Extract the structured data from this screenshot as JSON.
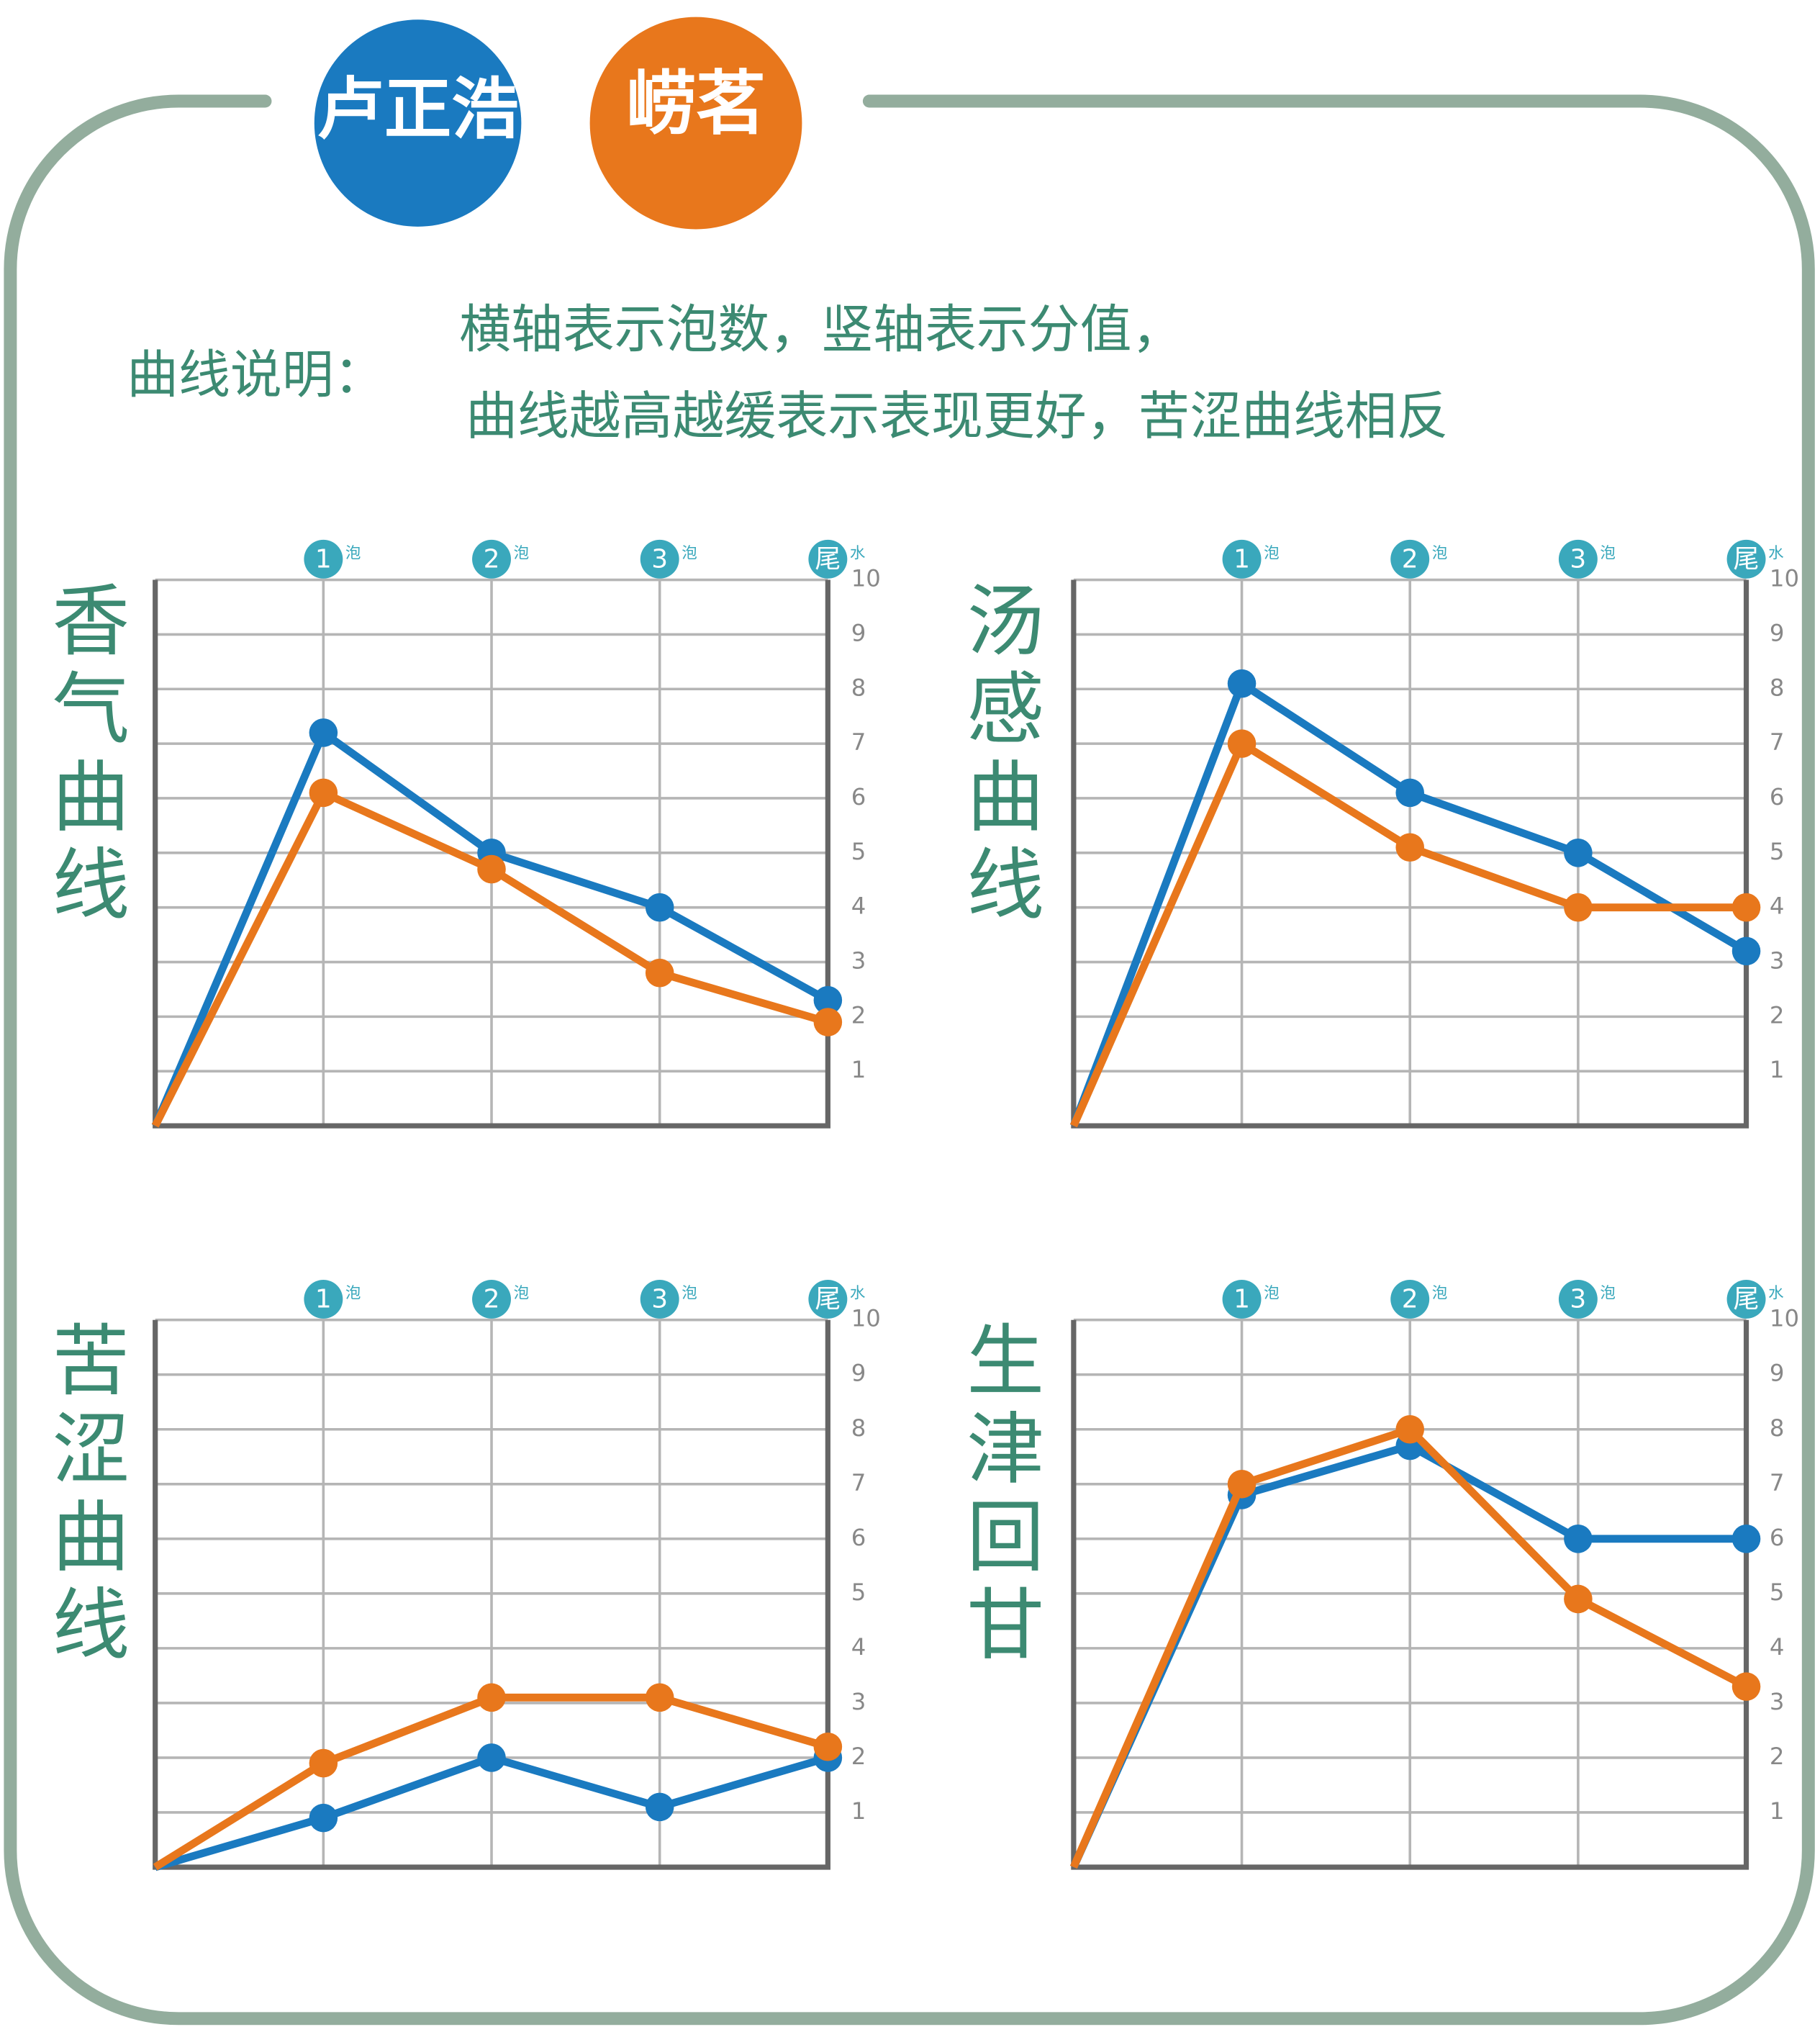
{
  "legend": [
    {
      "name": "卢正浩",
      "color": "#1a7ac0"
    },
    {
      "name": "崂茗",
      "color": "#e8771c"
    }
  ],
  "description": {
    "label": "曲线说明：",
    "lines": [
      "横轴表示泡数，竖轴表示分值，",
      "曲线越高越缓表示表现更好，苦涩曲线相反"
    ]
  },
  "chart_data": [
    {
      "type": "line",
      "title": "香气曲线",
      "categories": [
        null,
        {
          "badge": "1",
          "unit": "泡"
        },
        {
          "badge": "2",
          "unit": "泡"
        },
        {
          "badge": "3",
          "unit": "泡"
        },
        {
          "badge": "尾",
          "unit": "水"
        }
      ],
      "series": [
        {
          "values": [
            0,
            7.2,
            5.0,
            4.0,
            2.3
          ]
        },
        {
          "values": [
            0,
            6.1,
            4.7,
            2.8,
            1.9
          ]
        }
      ],
      "ylim": [
        0,
        10
      ],
      "yticks": [
        1,
        2,
        3,
        4,
        5,
        6,
        7,
        8,
        9,
        10
      ],
      "grid": true
    },
    {
      "type": "line",
      "title": "汤感曲线",
      "categories": [
        null,
        {
          "badge": "1",
          "unit": "泡"
        },
        {
          "badge": "2",
          "unit": "泡"
        },
        {
          "badge": "3",
          "unit": "泡"
        },
        {
          "badge": "尾",
          "unit": "水"
        }
      ],
      "series": [
        {
          "values": [
            0,
            8.1,
            6.1,
            5.0,
            3.2
          ]
        },
        {
          "values": [
            0,
            7.0,
            5.1,
            4.0,
            4.0
          ]
        }
      ],
      "ylim": [
        0,
        10
      ],
      "yticks": [
        1,
        2,
        3,
        4,
        5,
        6,
        7,
        8,
        9,
        10
      ],
      "grid": true
    },
    {
      "type": "line",
      "title": "苦涩曲线",
      "categories": [
        null,
        {
          "badge": "1",
          "unit": "泡"
        },
        {
          "badge": "2",
          "unit": "泡"
        },
        {
          "badge": "3",
          "unit": "泡"
        },
        {
          "badge": "尾",
          "unit": "水"
        }
      ],
      "series": [
        {
          "values": [
            0,
            0.9,
            2.0,
            1.1,
            2.0
          ]
        },
        {
          "values": [
            0,
            1.9,
            3.1,
            3.1,
            2.2
          ]
        }
      ],
      "ylim": [
        0,
        10
      ],
      "yticks": [
        1,
        2,
        3,
        4,
        5,
        6,
        7,
        8,
        9,
        10
      ],
      "grid": true
    },
    {
      "type": "line",
      "title": "生津回甘",
      "categories": [
        null,
        {
          "badge": "1",
          "unit": "泡"
        },
        {
          "badge": "2",
          "unit": "泡"
        },
        {
          "badge": "3",
          "unit": "泡"
        },
        {
          "badge": "尾",
          "unit": "水"
        }
      ],
      "series": [
        {
          "values": [
            0,
            6.8,
            7.7,
            6.0,
            6.0
          ]
        },
        {
          "values": [
            0,
            7.0,
            8.0,
            4.9,
            3.3
          ]
        }
      ],
      "ylim": [
        0,
        10
      ],
      "yticks": [
        1,
        2,
        3,
        4,
        5,
        6,
        7,
        8,
        9,
        10
      ],
      "grid": true
    }
  ]
}
